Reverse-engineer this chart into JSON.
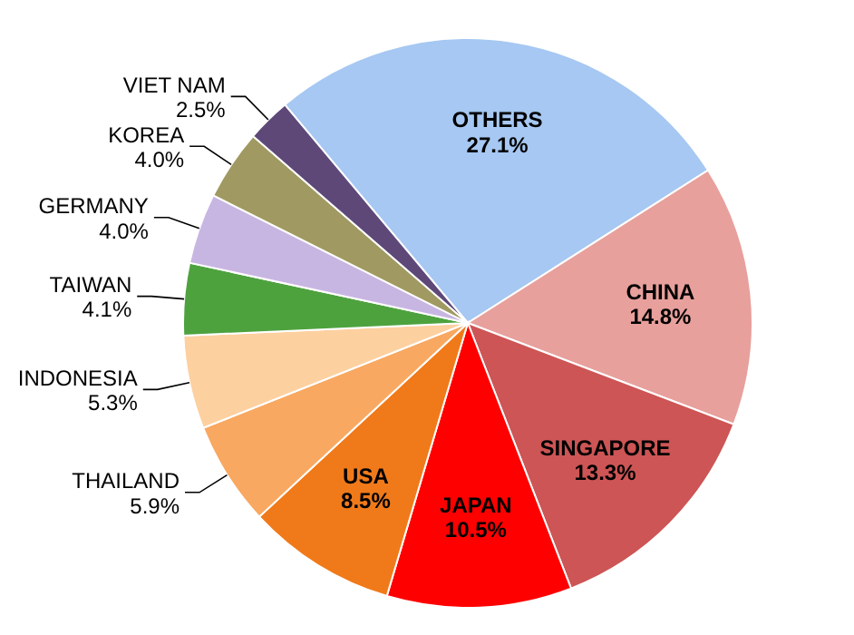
{
  "chart_data": {
    "type": "pie",
    "categories": [
      "OTHERS",
      "CHINA",
      "SINGAPORE",
      "JAPAN",
      "USA",
      "THAILAND",
      "INDONESIA",
      "TAIWAN",
      "GERMANY",
      "KOREA",
      "VIET NAM"
    ],
    "values": [
      27.1,
      14.8,
      13.3,
      10.5,
      8.5,
      5.9,
      5.3,
      4.1,
      4.0,
      4.0,
      2.5
    ],
    "value_labels": [
      "27.1%",
      "14.8%",
      "13.3%",
      "10.5%",
      "8.5%",
      "5.9%",
      "5.3%",
      "4.1%",
      "4.0%",
      "4.0%",
      "2.5%"
    ],
    "colors": [
      "#a6c8f2",
      "#e8a09c",
      "#cd5555",
      "#ff0000",
      "#f07a1a",
      "#f8a860",
      "#fdd0a0",
      "#4ea23e",
      "#c8b6e2",
      "#a09a62",
      "#5e4878"
    ]
  }
}
